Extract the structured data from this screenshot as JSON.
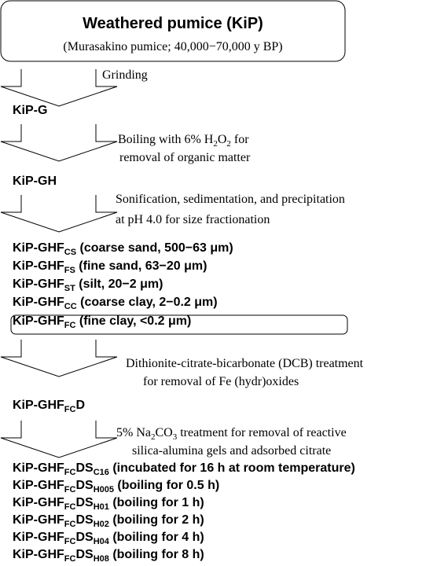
{
  "header": {
    "title": "Weathered pumice (KiP)",
    "subtitle": "(Murasakino pumice; 40,000−70,000 y BP)"
  },
  "flow": [
    {
      "treatment": [
        [
          {
            "text": "Grinding"
          }
        ]
      ],
      "products": [
        [
          {
            "text": "KiP-G"
          }
        ]
      ]
    },
    {
      "treatment": [
        [
          {
            "text": "Boiling with 6% H"
          },
          {
            "sub": "2"
          },
          {
            "text": "O"
          },
          {
            "sub": "2"
          },
          {
            "text": " for"
          }
        ],
        [
          {
            "text": "removal of organic matter"
          }
        ]
      ],
      "products": [
        [
          {
            "text": "KiP-GH"
          }
        ]
      ]
    },
    {
      "treatment": [
        [
          {
            "text": "Sonification, sedimentation, and precipitation"
          }
        ],
        [
          {
            "text": "at pH 4.0 for size fractionation"
          }
        ]
      ],
      "products": [
        [
          {
            "text": "KiP-GHF"
          },
          {
            "sub": "CS"
          },
          {
            "text": " (coarse sand, 500−63 μm)"
          }
        ],
        [
          {
            "text": "KiP-GHF"
          },
          {
            "sub": "FS"
          },
          {
            "text": " (fine sand, 63−20 μm)"
          }
        ],
        [
          {
            "text": "KiP-GHF"
          },
          {
            "sub": "ST"
          },
          {
            "text": " (silt, 20−2 μm)"
          }
        ],
        [
          {
            "text": "KiP-GHF"
          },
          {
            "sub": "CC"
          },
          {
            "text": " (coarse clay, 2−0.2 μm)"
          }
        ],
        [
          {
            "text": "KiP-GHF"
          },
          {
            "sub": "FC"
          },
          {
            "text": " (fine clay, <0.2 μm)"
          }
        ]
      ]
    },
    {
      "treatment": [
        [
          {
            "text": "Dithionite-citrate-bicarbonate (DCB) treatment"
          }
        ],
        [
          {
            "text": "for removal of Fe (hydr)oxides"
          }
        ]
      ],
      "products": [
        [
          {
            "text": "KiP-GHF"
          },
          {
            "sub": "FC"
          },
          {
            "text": "D"
          }
        ]
      ]
    },
    {
      "treatment": [
        [
          {
            "text": "5% Na"
          },
          {
            "sub": "2"
          },
          {
            "text": "CO"
          },
          {
            "sub": "3"
          },
          {
            "text": " treatment for removal of reactive"
          }
        ],
        [
          {
            "text": "silica-alumina gels and adsorbed citrate"
          }
        ]
      ],
      "products": [
        [
          {
            "text": "KiP-GHF"
          },
          {
            "sub": "FC"
          },
          {
            "text": "DS"
          },
          {
            "sub": "C16"
          },
          {
            "text": " (incubated for 16 h at room temperature)"
          }
        ],
        [
          {
            "text": "KiP-GHF"
          },
          {
            "sub": "FC"
          },
          {
            "text": "DS"
          },
          {
            "sub": "H005"
          },
          {
            "text": " (boiling for 0.5 h)"
          }
        ],
        [
          {
            "text": "KiP-GHF"
          },
          {
            "sub": "FC"
          },
          {
            "text": "DS"
          },
          {
            "sub": "H01"
          },
          {
            "text": " (boiling for 1 h)"
          }
        ],
        [
          {
            "text": "KiP-GHF"
          },
          {
            "sub": "FC"
          },
          {
            "text": "DS"
          },
          {
            "sub": "H02"
          },
          {
            "text": " (boiling for 2 h)"
          }
        ],
        [
          {
            "text": "KiP-GHF"
          },
          {
            "sub": "FC"
          },
          {
            "text": "DS"
          },
          {
            "sub": "H04"
          },
          {
            "text": " (boiling for 4 h)"
          }
        ],
        [
          {
            "text": "KiP-GHF"
          },
          {
            "sub": "FC"
          },
          {
            "text": "DS"
          },
          {
            "sub": "H08"
          },
          {
            "text": " (boiling for 8 h)"
          }
        ]
      ]
    }
  ]
}
